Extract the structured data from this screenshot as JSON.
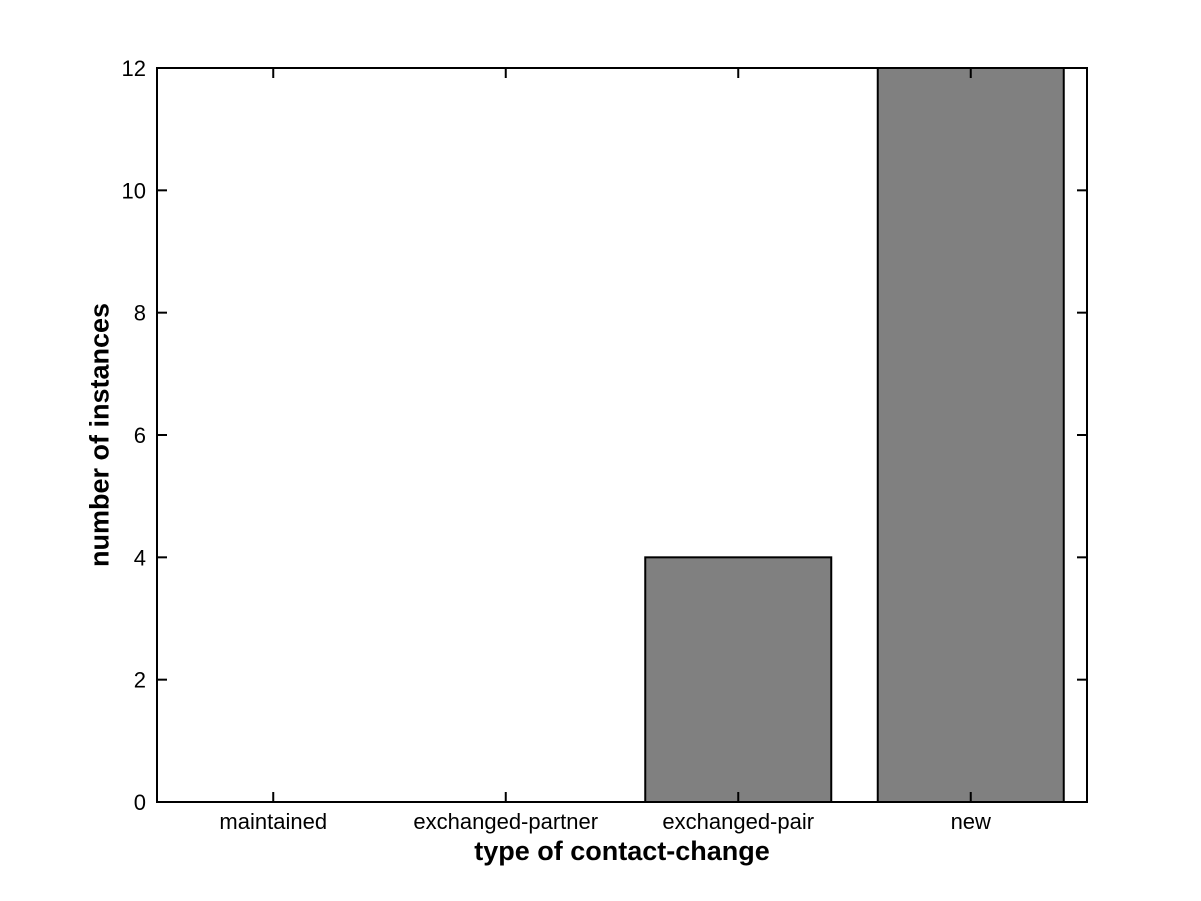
{
  "chart_data": {
    "type": "bar",
    "title": "",
    "categories": [
      "maintained",
      "exchanged-partner",
      "exchanged-pair",
      "new"
    ],
    "values": [
      0,
      0,
      4,
      12
    ],
    "xlabel": "type of contact-change",
    "ylabel": "number of instances",
    "ylim": [
      0,
      12
    ],
    "yticks": [
      0,
      2,
      4,
      6,
      8,
      10,
      12
    ],
    "bar_width_fraction": 0.8,
    "grid": false,
    "legend_position": "none",
    "colors": {
      "bar_fill": "#808080",
      "bar_edge": "#000000",
      "axis": "#000000",
      "background": "#ffffff",
      "text": "#000000"
    }
  }
}
